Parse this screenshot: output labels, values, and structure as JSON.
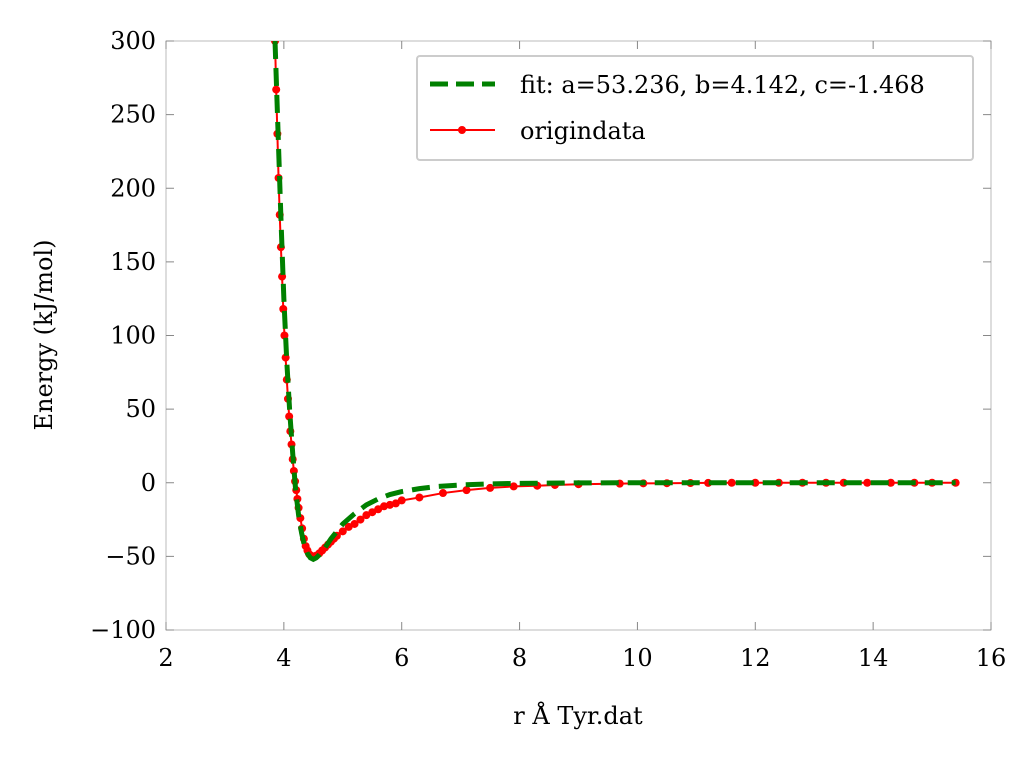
{
  "chart_data": {
    "type": "line",
    "xlabel": "r Å  Tyr.dat",
    "ylabel": "Energy (kJ/mol)",
    "xlim": [
      2,
      16
    ],
    "ylim": [
      -100,
      300
    ],
    "xticks": [
      2,
      4,
      6,
      8,
      10,
      12,
      14,
      16
    ],
    "yticks": [
      -100,
      -50,
      0,
      50,
      100,
      150,
      200,
      250,
      300
    ],
    "xtick_labels": [
      "2",
      "4",
      "6",
      "8",
      "10",
      "12",
      "14",
      "16"
    ],
    "ytick_labels": [
      "−100",
      "−50",
      "0",
      "50",
      "100",
      "150",
      "200",
      "250",
      "300"
    ],
    "grid": false,
    "legend_position": "top-right",
    "series": [
      {
        "name": "fit: a=53.236, b=4.142, c=-1.468",
        "style": "dashed",
        "color": "#008000",
        "x": [
          3.85,
          3.9,
          3.95,
          4.0,
          4.05,
          4.1,
          4.15,
          4.2,
          4.25,
          4.3,
          4.35,
          4.4,
          4.45,
          4.5,
          4.55,
          4.6,
          4.7,
          4.8,
          4.9,
          5.0,
          5.2,
          5.4,
          5.6,
          5.8,
          6.0,
          6.3,
          6.6,
          7.0,
          7.5,
          8.0,
          9.0,
          10.0,
          11.0,
          12.0,
          13.0,
          14.0,
          15.0,
          15.4
        ],
        "y": [
          300,
          240,
          180,
          125,
          82,
          48,
          20,
          -5,
          -22,
          -34,
          -43,
          -48,
          -51,
          -52,
          -51,
          -49,
          -44,
          -38,
          -33,
          -28,
          -21,
          -15,
          -11,
          -8,
          -6,
          -4,
          -2.5,
          -1.5,
          -0.8,
          -0.4,
          -0.1,
          0,
          0,
          0,
          0,
          0,
          0,
          0
        ]
      },
      {
        "name": "origindata",
        "style": "line-marker",
        "color": "#ff0000",
        "x": [
          3.85,
          3.87,
          3.89,
          3.91,
          3.93,
          3.95,
          3.97,
          3.99,
          4.01,
          4.03,
          4.05,
          4.07,
          4.09,
          4.11,
          4.13,
          4.15,
          4.17,
          4.19,
          4.21,
          4.23,
          4.25,
          4.28,
          4.31,
          4.34,
          4.37,
          4.4,
          4.43,
          4.46,
          4.5,
          4.55,
          4.6,
          4.65,
          4.7,
          4.75,
          4.8,
          4.85,
          4.9,
          5.0,
          5.1,
          5.2,
          5.3,
          5.4,
          5.5,
          5.6,
          5.7,
          5.8,
          5.9,
          6.0,
          6.3,
          6.7,
          7.1,
          7.5,
          7.9,
          8.3,
          8.6,
          9.0,
          9.7,
          10.1,
          10.5,
          10.9,
          11.2,
          11.6,
          12.0,
          12.4,
          12.8,
          13.2,
          13.5,
          13.9,
          14.3,
          14.7,
          15.0,
          15.4
        ],
        "y": [
          300,
          267,
          237,
          207,
          182,
          160,
          140,
          118,
          100,
          85,
          70,
          57,
          45,
          35,
          26,
          16,
          8,
          1,
          -5,
          -11,
          -17,
          -24,
          -31,
          -38,
          -43,
          -46,
          -48.5,
          -49.5,
          -50,
          -49.5,
          -48,
          -46,
          -44,
          -42,
          -40,
          -38,
          -36,
          -33,
          -30,
          -28,
          -25,
          -22,
          -20,
          -18,
          -16,
          -15,
          -14,
          -12,
          -10,
          -7,
          -5,
          -3.5,
          -2.5,
          -2,
          -1.5,
          -1,
          -0.6,
          -0.4,
          -0.3,
          -0.2,
          -0.1,
          0,
          0,
          0,
          0,
          0,
          0,
          0,
          0,
          0,
          0,
          0
        ]
      }
    ]
  }
}
